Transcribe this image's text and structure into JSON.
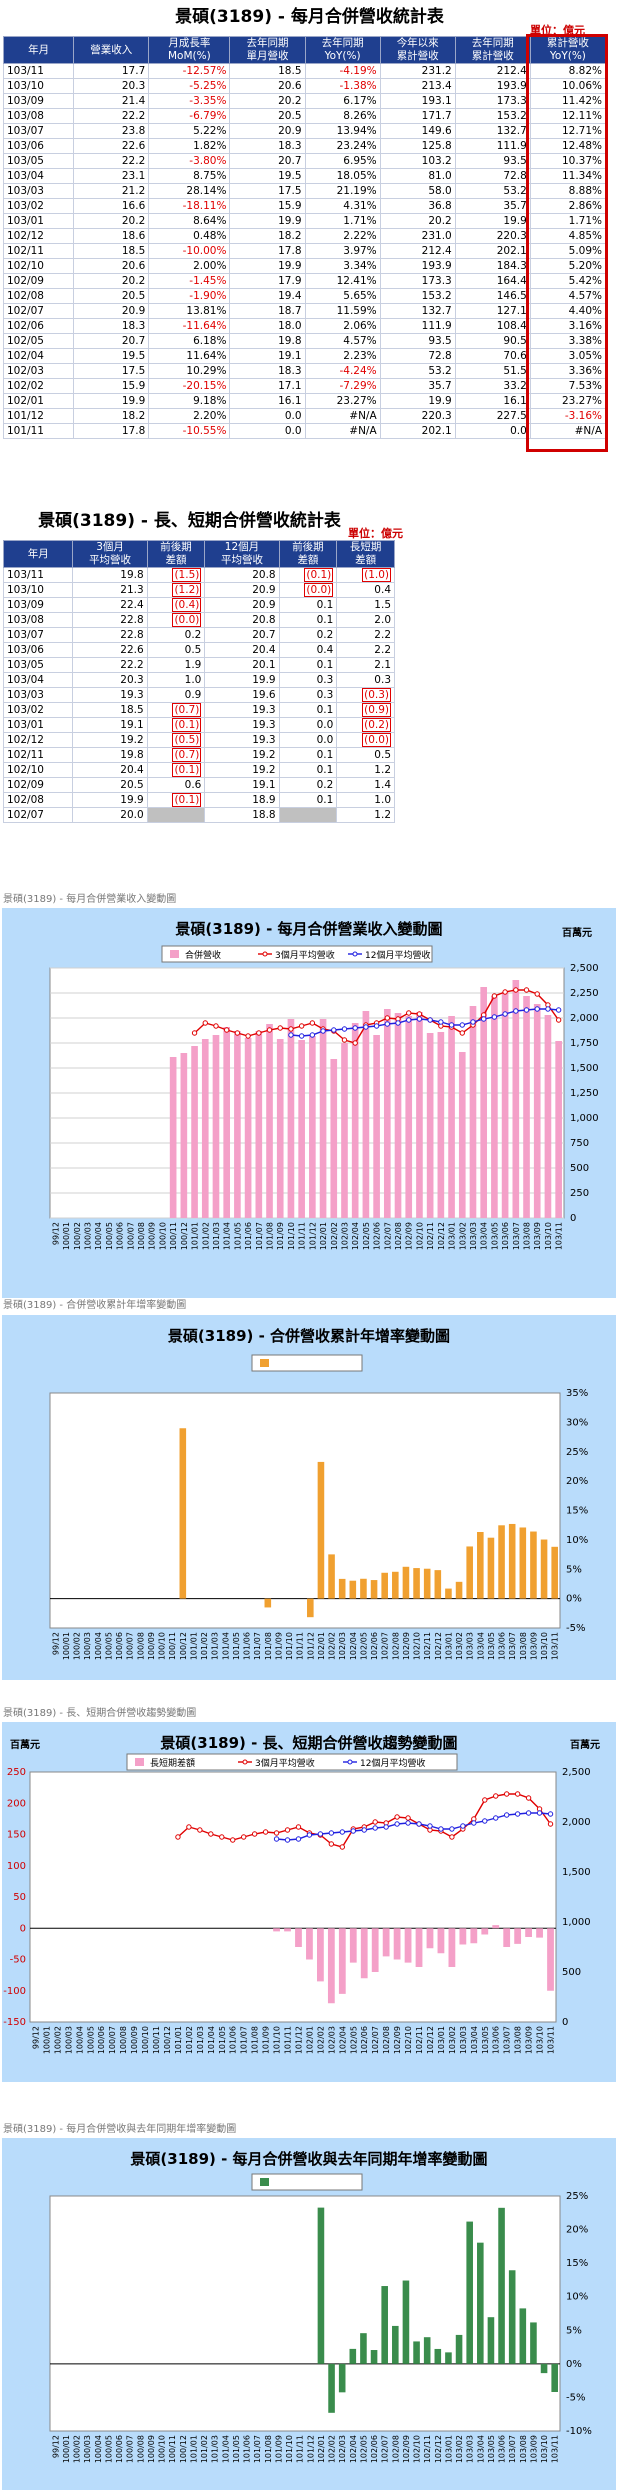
{
  "t1": {
    "title": "景碩(3189) - 每月合併營收統計表",
    "unit": "單位：億元",
    "headers": [
      "年月",
      "營業收入",
      "月成長率\nMoM(%)",
      "去年同期\n單月營收",
      "去年同期\nYoY(%)",
      "今年以來\n累計營收",
      "去年同期\n累計營收",
      "累計營收\nYoY(%)"
    ],
    "rows": [
      [
        "103/11",
        "17.7",
        "-12.57%",
        "18.5",
        "-4.19%",
        "231.2",
        "212.4",
        "8.82%"
      ],
      [
        "103/10",
        "20.3",
        "-5.25%",
        "20.6",
        "-1.38%",
        "213.4",
        "193.9",
        "10.06%"
      ],
      [
        "103/09",
        "21.4",
        "-3.35%",
        "20.2",
        "6.17%",
        "193.1",
        "173.3",
        "11.42%"
      ],
      [
        "103/08",
        "22.2",
        "-6.79%",
        "20.5",
        "8.26%",
        "171.7",
        "153.2",
        "12.11%"
      ],
      [
        "103/07",
        "23.8",
        "5.22%",
        "20.9",
        "13.94%",
        "149.6",
        "132.7",
        "12.71%"
      ],
      [
        "103/06",
        "22.6",
        "1.82%",
        "18.3",
        "23.24%",
        "125.8",
        "111.9",
        "12.48%"
      ],
      [
        "103/05",
        "22.2",
        "-3.80%",
        "20.7",
        "6.95%",
        "103.2",
        "93.5",
        "10.37%"
      ],
      [
        "103/04",
        "23.1",
        "8.75%",
        "19.5",
        "18.05%",
        "81.0",
        "72.8",
        "11.34%"
      ],
      [
        "103/03",
        "21.2",
        "28.14%",
        "17.5",
        "21.19%",
        "58.0",
        "53.2",
        "8.88%"
      ],
      [
        "103/02",
        "16.6",
        "-18.11%",
        "15.9",
        "4.31%",
        "36.8",
        "35.7",
        "2.86%"
      ],
      [
        "103/01",
        "20.2",
        "8.64%",
        "19.9",
        "1.71%",
        "20.2",
        "19.9",
        "1.71%"
      ],
      [
        "102/12",
        "18.6",
        "0.48%",
        "18.2",
        "2.22%",
        "231.0",
        "220.3",
        "4.85%"
      ],
      [
        "102/11",
        "18.5",
        "-10.00%",
        "17.8",
        "3.97%",
        "212.4",
        "202.1",
        "5.09%"
      ],
      [
        "102/10",
        "20.6",
        "2.00%",
        "19.9",
        "3.34%",
        "193.9",
        "184.3",
        "5.20%"
      ],
      [
        "102/09",
        "20.2",
        "-1.45%",
        "17.9",
        "12.41%",
        "173.3",
        "164.4",
        "5.42%"
      ],
      [
        "102/08",
        "20.5",
        "-1.90%",
        "19.4",
        "5.65%",
        "153.2",
        "146.5",
        "4.57%"
      ],
      [
        "102/07",
        "20.9",
        "13.81%",
        "18.7",
        "11.59%",
        "132.7",
        "127.1",
        "4.40%"
      ],
      [
        "102/06",
        "18.3",
        "-11.64%",
        "18.0",
        "2.06%",
        "111.9",
        "108.4",
        "3.16%"
      ],
      [
        "102/05",
        "20.7",
        "6.18%",
        "19.8",
        "4.57%",
        "93.5",
        "90.5",
        "3.38%"
      ],
      [
        "102/04",
        "19.5",
        "11.64%",
        "19.1",
        "2.23%",
        "72.8",
        "70.6",
        "3.05%"
      ],
      [
        "102/03",
        "17.5",
        "10.29%",
        "18.3",
        "-4.24%",
        "53.2",
        "51.5",
        "3.36%"
      ],
      [
        "102/02",
        "15.9",
        "-20.15%",
        "17.1",
        "-7.29%",
        "35.7",
        "33.2",
        "7.53%"
      ],
      [
        "102/01",
        "19.9",
        "9.18%",
        "16.1",
        "23.27%",
        "19.9",
        "16.1",
        "23.27%"
      ],
      [
        "101/12",
        "18.2",
        "2.20%",
        "0.0",
        "#N/A",
        "220.3",
        "227.5",
        "-3.16%"
      ],
      [
        "101/11",
        "17.8",
        "-10.55%",
        "0.0",
        "#N/A",
        "202.1",
        "0.0",
        "#N/A"
      ]
    ]
  },
  "t2": {
    "title": "景碩(3189) - 長、短期合併營收統計表",
    "unit": "單位：億元",
    "headers": [
      "年月",
      "3個月\n平均營收",
      "前後期\n差額",
      "12個月\n平均營收",
      "前後期\n差額",
      "長短期\n差額"
    ],
    "rows": [
      [
        "103/11",
        "19.8",
        "(1.5)",
        "20.8",
        "(0.1)",
        "(1.0)"
      ],
      [
        "103/10",
        "21.3",
        "(1.2)",
        "20.9",
        "(0.0)",
        "0.4"
      ],
      [
        "103/09",
        "22.4",
        "(0.4)",
        "20.9",
        "0.1",
        "1.5"
      ],
      [
        "103/08",
        "22.8",
        "(0.0)",
        "20.8",
        "0.1",
        "2.0"
      ],
      [
        "103/07",
        "22.8",
        "0.2",
        "20.7",
        "0.2",
        "2.2"
      ],
      [
        "103/06",
        "22.6",
        "0.5",
        "20.4",
        "0.4",
        "2.2"
      ],
      [
        "103/05",
        "22.2",
        "1.9",
        "20.1",
        "0.1",
        "2.1"
      ],
      [
        "103/04",
        "20.3",
        "1.0",
        "19.9",
        "0.3",
        "0.3"
      ],
      [
        "103/03",
        "19.3",
        "0.9",
        "19.6",
        "0.3",
        "(0.3)"
      ],
      [
        "103/02",
        "18.5",
        "(0.7)",
        "19.3",
        "0.1",
        "(0.9)"
      ],
      [
        "103/01",
        "19.1",
        "(0.1)",
        "19.3",
        "0.0",
        "(0.2)"
      ],
      [
        "102/12",
        "19.2",
        "(0.5)",
        "19.3",
        "0.0",
        "(0.0)"
      ],
      [
        "102/11",
        "19.8",
        "(0.7)",
        "19.2",
        "0.1",
        "0.5"
      ],
      [
        "102/10",
        "20.4",
        "(0.1)",
        "19.2",
        "0.1",
        "1.2"
      ],
      [
        "102/09",
        "20.5",
        "0.6",
        "19.1",
        "0.2",
        "1.4"
      ],
      [
        "102/08",
        "19.9",
        "(0.1)",
        "18.9",
        "0.1",
        "1.0"
      ],
      [
        "102/07",
        "20.0",
        "",
        "18.8",
        "",
        "1.2"
      ]
    ]
  },
  "captions": {
    "c1": "景碩(3189) - 每月合併營業收入變動圖",
    "c2": "景碩(3189) - 合併營收累計年增率變動圖",
    "c3": "景碩(3189) - 長、短期合併營收趨勢變動圖",
    "c4": "景碩(3189) - 每月合併營收與去年同期年增率變動圖"
  },
  "chart_data": [
    {
      "type": "bar",
      "title": "景碩(3189) - 每月合併營業收入變動圖",
      "unit_label": "百萬元",
      "x_labels": [
        "99/12",
        "100/01",
        "100/02",
        "100/03",
        "100/04",
        "100/05",
        "100/06",
        "100/07",
        "100/08",
        "100/09",
        "100/10",
        "100/11",
        "100/12",
        "101/01",
        "101/02",
        "101/03",
        "101/04",
        "101/05",
        "101/06",
        "101/07",
        "101/08",
        "101/09",
        "101/10",
        "101/11",
        "101/12",
        "102/01",
        "102/02",
        "102/03",
        "102/04",
        "102/05",
        "102/06",
        "102/07",
        "102/08",
        "102/09",
        "102/10",
        "102/11",
        "102/12",
        "103/01",
        "103/02",
        "103/03",
        "103/04",
        "103/05",
        "103/06",
        "103/07",
        "103/08",
        "103/09",
        "103/10",
        "103/11"
      ],
      "ylim": [
        0,
        2500
      ],
      "yticks": [
        "0",
        "250",
        "500",
        "750",
        "1,000",
        "1,250",
        "1,500",
        "1,750",
        "2,000",
        "2,250",
        "2,500"
      ],
      "series": [
        {
          "name": "合併營收",
          "kind": "bar",
          "color": "#f4a0c8",
          "values": [
            null,
            null,
            null,
            null,
            null,
            null,
            null,
            null,
            null,
            null,
            null,
            1610,
            1650,
            1720,
            1790,
            1830,
            1910,
            1870,
            1800,
            1870,
            1940,
            1790,
            1990,
            1780,
            1820,
            1990,
            1590,
            1750,
            1950,
            2070,
            1830,
            2090,
            2050,
            2020,
            2060,
            1850,
            1860,
            2020,
            1660,
            2120,
            2310,
            2220,
            2260,
            2380,
            2220,
            2140,
            2030,
            1770
          ]
        },
        {
          "name": "3個月平均營收",
          "kind": "line",
          "color": "#e00000",
          "values": [
            null,
            null,
            null,
            null,
            null,
            null,
            null,
            null,
            null,
            null,
            null,
            null,
            null,
            1850,
            1950,
            1920,
            1880,
            1850,
            1820,
            1850,
            1880,
            1900,
            1890,
            1920,
            1950,
            1890,
            1870,
            1780,
            1750,
            1930,
            1950,
            2000,
            1990,
            2050,
            2040,
            1980,
            1920,
            1910,
            1850,
            1930,
            2030,
            2220,
            2260,
            2280,
            2280,
            2240,
            2130,
            1980
          ]
        },
        {
          "name": "12個月平均營收",
          "kind": "line",
          "color": "#2020e0",
          "values": [
            null,
            null,
            null,
            null,
            null,
            null,
            null,
            null,
            null,
            null,
            null,
            null,
            null,
            null,
            null,
            null,
            null,
            null,
            null,
            null,
            null,
            null,
            1830,
            1820,
            1830,
            1870,
            1880,
            1890,
            1900,
            1910,
            1920,
            1940,
            1950,
            1980,
            1990,
            1980,
            1960,
            1930,
            1930,
            1960,
            1990,
            2010,
            2040,
            2070,
            2080,
            2090,
            2090,
            2080
          ]
        }
      ]
    },
    {
      "type": "bar",
      "title": "景碩(3189) - 合併營收累計年增率變動圖",
      "x_labels": [
        "99/12",
        "100/01",
        "100/02",
        "100/03",
        "100/04",
        "100/05",
        "100/06",
        "100/07",
        "100/08",
        "100/09",
        "100/10",
        "100/11",
        "100/12",
        "101/01",
        "101/02",
        "101/03",
        "101/04",
        "101/05",
        "101/06",
        "101/07",
        "101/08",
        "101/09",
        "101/10",
        "101/11",
        "101/12",
        "102/01",
        "102/02",
        "102/03",
        "102/04",
        "102/05",
        "102/06",
        "102/07",
        "102/08",
        "102/09",
        "102/10",
        "102/11",
        "102/12",
        "103/01",
        "103/02",
        "103/03",
        "103/04",
        "103/05",
        "103/06",
        "103/07",
        "103/08",
        "103/09",
        "103/10",
        "103/11"
      ],
      "ylim": [
        -5,
        35
      ],
      "yticks": [
        "-5%",
        "0%",
        "5%",
        "10%",
        "15%",
        "20%",
        "25%",
        "30%",
        "35%"
      ],
      "series": [
        {
          "name": "",
          "kind": "bar",
          "color": "#f0a030",
          "values": [
            null,
            null,
            null,
            null,
            null,
            null,
            null,
            null,
            null,
            null,
            null,
            null,
            29.0,
            null,
            null,
            null,
            null,
            null,
            null,
            null,
            -1.5,
            null,
            null,
            null,
            -3.16,
            23.27,
            7.53,
            3.36,
            3.05,
            3.38,
            3.16,
            4.4,
            4.57,
            5.42,
            5.2,
            5.09,
            4.85,
            1.71,
            2.86,
            8.88,
            11.34,
            10.37,
            12.48,
            12.71,
            12.11,
            11.42,
            10.06,
            8.82
          ]
        }
      ]
    },
    {
      "type": "bar",
      "title": "景碩(3189) - 長、短期合併營收趨勢變動圖",
      "unit_label_left": "百萬元",
      "unit_label_right": "百萬元",
      "x_labels": [
        "99/12",
        "100/01",
        "100/02",
        "100/03",
        "100/04",
        "100/05",
        "100/06",
        "100/07",
        "100/08",
        "100/09",
        "100/10",
        "100/11",
        "100/12",
        "101/01",
        "101/02",
        "101/03",
        "101/04",
        "101/05",
        "101/06",
        "101/07",
        "101/08",
        "101/09",
        "101/10",
        "101/11",
        "101/12",
        "102/01",
        "102/02",
        "102/03",
        "102/04",
        "102/05",
        "102/06",
        "102/07",
        "102/08",
        "102/09",
        "102/10",
        "102/11",
        "102/12",
        "103/01",
        "103/02",
        "103/03",
        "103/04",
        "103/05",
        "103/06",
        "103/07",
        "103/08",
        "103/09",
        "103/10",
        "103/11"
      ],
      "ylim_left": [
        -150,
        250
      ],
      "yticks_left": [
        "-150",
        "-100",
        "-50",
        "0",
        "50",
        "100",
        "150",
        "200",
        "250"
      ],
      "ylim_right": [
        0,
        2500
      ],
      "yticks_right": [
        "0",
        "500",
        "1,000",
        "1,500",
        "2,000",
        "2,500"
      ],
      "series": [
        {
          "name": "長短期差額",
          "kind": "bar",
          "axis": "left",
          "color": "#f4a0c8",
          "values": [
            null,
            null,
            null,
            null,
            null,
            null,
            null,
            null,
            null,
            null,
            null,
            null,
            null,
            null,
            null,
            null,
            null,
            null,
            null,
            null,
            null,
            null,
            -5,
            -5,
            -30,
            -50,
            -85,
            -120,
            -105,
            -55,
            -80,
            -70,
            -45,
            -50,
            -55,
            -62,
            -32,
            -40,
            -62,
            -26,
            -24,
            -10,
            5,
            -30,
            -25,
            -14,
            -15,
            -100
          ]
        },
        {
          "name": "3個月平均營收",
          "kind": "line",
          "axis": "right",
          "color": "#e00000",
          "values": [
            null,
            null,
            null,
            null,
            null,
            null,
            null,
            null,
            null,
            null,
            null,
            null,
            null,
            1850,
            1950,
            1920,
            1880,
            1850,
            1820,
            1850,
            1880,
            1900,
            1890,
            1920,
            1950,
            1890,
            1870,
            1780,
            1750,
            1930,
            1950,
            2000,
            1990,
            2050,
            2040,
            1980,
            1920,
            1910,
            1850,
            1930,
            2030,
            2220,
            2260,
            2280,
            2280,
            2240,
            2130,
            1980
          ]
        },
        {
          "name": "12個月平均營收",
          "kind": "line",
          "axis": "right",
          "color": "#2020e0",
          "values": [
            null,
            null,
            null,
            null,
            null,
            null,
            null,
            null,
            null,
            null,
            null,
            null,
            null,
            null,
            null,
            null,
            null,
            null,
            null,
            null,
            null,
            null,
            1830,
            1820,
            1830,
            1870,
            1880,
            1890,
            1900,
            1910,
            1920,
            1940,
            1950,
            1980,
            1990,
            1980,
            1960,
            1930,
            1930,
            1960,
            1990,
            2010,
            2040,
            2070,
            2080,
            2090,
            2090,
            2080
          ]
        }
      ]
    },
    {
      "type": "bar",
      "title": "景碩(3189) - 每月合併營收與去年同期年增率變動圖",
      "x_labels": [
        "99/12",
        "100/01",
        "100/02",
        "100/03",
        "100/04",
        "100/05",
        "100/06",
        "100/07",
        "100/08",
        "100/09",
        "100/10",
        "100/11",
        "100/12",
        "101/01",
        "101/02",
        "101/03",
        "101/04",
        "101/05",
        "101/06",
        "101/07",
        "101/08",
        "101/09",
        "101/10",
        "101/11",
        "101/12",
        "102/01",
        "102/02",
        "102/03",
        "102/04",
        "102/05",
        "102/06",
        "102/07",
        "102/08",
        "102/09",
        "102/10",
        "102/11",
        "102/12",
        "103/01",
        "103/02",
        "103/03",
        "103/04",
        "103/05",
        "103/06",
        "103/07",
        "103/08",
        "103/09",
        "103/10",
        "103/11"
      ],
      "ylim": [
        -10,
        25
      ],
      "yticks": [
        "-10%",
        "-5%",
        "0%",
        "5%",
        "10%",
        "15%",
        "20%",
        "25%"
      ],
      "series": [
        {
          "name": "",
          "kind": "bar",
          "color": "#3a8c4c",
          "values": [
            null,
            null,
            null,
            null,
            null,
            null,
            null,
            null,
            null,
            null,
            null,
            null,
            null,
            null,
            null,
            null,
            null,
            null,
            null,
            null,
            null,
            null,
            null,
            null,
            null,
            23.27,
            -7.29,
            -4.24,
            2.23,
            4.57,
            2.06,
            11.59,
            5.65,
            12.41,
            3.34,
            3.97,
            2.22,
            1.71,
            4.31,
            21.19,
            18.05,
            6.95,
            23.24,
            13.94,
            8.26,
            6.17,
            -1.38,
            -4.19
          ]
        }
      ]
    }
  ]
}
